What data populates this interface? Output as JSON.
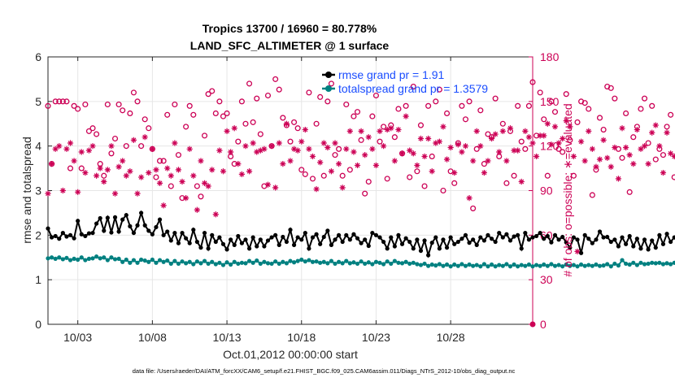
{
  "chart_data": {
    "type": "line",
    "title": "Tropics 13700 / 16960 = 80.778%",
    "subtitle": "LAND_SFC_ALTIMETER @ 1 surface",
    "xlabel": "Oct.01,2012 00:00:00 start",
    "ylabel_left": "rmse and totalspread",
    "ylabel_right": "# of obs: o=possible; ∗=evaluated",
    "footer": "data file: /Users/raeder/DAI/ATM_forcXX/CAM6_setup/f.e21.FHIST_BGC.f09_025.CAM6assim.011/Diags_NTrS_2012-10/obs_diag_output.nc",
    "xlim": [
      1,
      33.5
    ],
    "ylim_left": [
      0,
      6
    ],
    "ylim_right": [
      0,
      180
    ],
    "x_ticks": [
      3,
      8,
      13,
      18,
      23,
      28
    ],
    "x_tick_labels": [
      "10/03",
      "10/08",
      "10/13",
      "10/18",
      "10/23",
      "10/28"
    ],
    "y_left_ticks": [
      "0",
      "1",
      "2",
      "3",
      "4",
      "5",
      "6"
    ],
    "y_right_ticks": [
      "0",
      "30",
      "60",
      "90",
      "120",
      "150",
      "180"
    ],
    "grid": true,
    "legend_position": "top-right",
    "colors": {
      "rmse": "#000000",
      "spread": "#008080",
      "obs": "#cc0055",
      "legend_text": "#1a4dff"
    },
    "t_start": 1.0,
    "t_step": 0.25,
    "series": [
      {
        "name": "rmse grand pr = 1.91",
        "axis": "left",
        "values": [
          2.15,
          1.95,
          1.98,
          1.92,
          2.05,
          1.97,
          2.0,
          1.93,
          2.32,
          2.02,
          1.98,
          2.04,
          2.05,
          2.26,
          2.38,
          2.1,
          2.39,
          2.06,
          2.4,
          2.08,
          2.35,
          2.45,
          2.2,
          2.05,
          2.22,
          2.5,
          2.22,
          2.1,
          2.02,
          2.18,
          2.35,
          2.0,
          2.08,
          1.88,
          2.05,
          1.82,
          2.05,
          1.93,
          1.82,
          2.12,
          1.85,
          1.72,
          2.05,
          1.7,
          2.0,
          1.85,
          1.95,
          1.8,
          1.68,
          1.9,
          1.78,
          1.98,
          1.82,
          1.9,
          1.7,
          1.95,
          1.75,
          1.9,
          1.75,
          1.88,
          1.95,
          2.0,
          1.78,
          1.96,
          1.85,
          2.12,
          1.78,
          1.95,
          1.9,
          2.05,
          1.7,
          1.95,
          2.02,
          1.8,
          1.96,
          2.1,
          1.78,
          1.9,
          2.0,
          1.85,
          2.0,
          1.9,
          2.02,
          1.93,
          1.82,
          1.9,
          1.76,
          2.05,
          2.0,
          1.95,
          1.85,
          1.7,
          1.95,
          1.75,
          2.0,
          1.8,
          1.93,
          1.85,
          1.7,
          1.9,
          1.65,
          1.88,
          1.55,
          1.83,
          1.95,
          1.7,
          1.9,
          1.72,
          1.95,
          1.8,
          1.85,
          1.92,
          2.0,
          1.83,
          1.9,
          1.78,
          1.95,
          1.88,
          2.0,
          1.92,
          1.85,
          2.05,
          1.95,
          2.02,
          1.88,
          1.97,
          2.0,
          1.7,
          2.05,
          1.9,
          1.95,
          1.98,
          2.05,
          1.92,
          1.98,
          1.84,
          2.0,
          1.9,
          1.96,
          1.84,
          1.72,
          1.95,
          1.9,
          1.6,
          2.0,
          1.92,
          1.82,
          1.9,
          2.08,
          1.95,
          1.96,
          1.85,
          1.9,
          1.75,
          1.95,
          1.8,
          1.98,
          1.75,
          1.92,
          1.7,
          1.9,
          1.68,
          1.88,
          1.72,
          2.0,
          1.8,
          2.03,
          1.85,
          1.95,
          1.8,
          1.92,
          1.82,
          2.05,
          1.95,
          2.0,
          1.88,
          2.12,
          2.22,
          2.05,
          1.9,
          1.98,
          1.95,
          2.02,
          1.6,
          1.9,
          1.78,
          1.98,
          1.82,
          1.93,
          1.86,
          1.95,
          2.05,
          1.9,
          1.98,
          1.88,
          2.0,
          1.85,
          2.03,
          1.82,
          1.97,
          1.86,
          1.98,
          1.88,
          2.05,
          1.95,
          2.06,
          1.86,
          1.9
        ]
      },
      {
        "name": "totalspread grand pr = 1.3579",
        "axis": "left",
        "values": [
          1.48,
          1.5,
          1.47,
          1.5,
          1.46,
          1.49,
          1.44,
          1.47,
          1.45,
          1.5,
          1.44,
          1.47,
          1.48,
          1.52,
          1.48,
          1.5,
          1.44,
          1.5,
          1.46,
          1.47,
          1.4,
          1.45,
          1.38,
          1.44,
          1.38,
          1.45,
          1.43,
          1.4,
          1.45,
          1.38,
          1.44,
          1.4,
          1.43,
          1.36,
          1.42,
          1.36,
          1.41,
          1.37,
          1.4,
          1.35,
          1.41,
          1.37,
          1.42,
          1.36,
          1.4,
          1.35,
          1.38,
          1.33,
          1.39,
          1.34,
          1.4,
          1.36,
          1.38,
          1.37,
          1.42,
          1.38,
          1.43,
          1.36,
          1.4,
          1.37,
          1.36,
          1.41,
          1.36,
          1.4,
          1.37,
          1.42,
          1.39,
          1.42,
          1.45,
          1.41,
          1.44,
          1.4,
          1.41,
          1.38,
          1.4,
          1.37,
          1.42,
          1.36,
          1.4,
          1.37,
          1.42,
          1.37,
          1.39,
          1.36,
          1.41,
          1.36,
          1.39,
          1.35,
          1.4,
          1.38,
          1.35,
          1.41,
          1.36,
          1.42,
          1.38,
          1.37,
          1.4,
          1.36,
          1.38,
          1.35,
          1.33,
          1.36,
          1.31,
          1.34,
          1.32,
          1.35,
          1.31,
          1.34,
          1.3,
          1.34,
          1.31,
          1.35,
          1.31,
          1.34,
          1.31,
          1.33,
          1.3,
          1.35,
          1.3,
          1.34,
          1.3,
          1.33,
          1.31,
          1.35,
          1.3,
          1.34,
          1.3,
          1.33,
          1.31,
          1.34,
          1.3,
          1.33,
          1.31,
          1.34,
          1.31,
          1.35,
          1.31,
          1.33,
          1.3,
          1.34,
          1.31,
          1.33,
          1.3,
          1.34,
          1.31,
          1.33,
          1.31,
          1.34,
          1.31,
          1.32,
          1.35,
          1.3,
          1.36,
          1.32,
          1.44,
          1.36,
          1.34,
          1.38,
          1.33,
          1.38,
          1.35,
          1.36,
          1.38,
          1.37,
          1.38,
          1.35,
          1.37,
          1.35,
          1.38,
          1.34,
          1.37,
          1.35,
          1.38,
          1.36,
          1.37,
          1.35,
          1.4,
          1.36,
          1.38,
          1.36,
          1.39,
          1.37,
          1.4,
          1.36,
          1.38,
          1.37,
          1.36,
          1.38,
          1.36,
          1.38,
          1.37,
          1.38,
          1.37,
          1.39,
          1.36,
          1.38,
          1.36,
          1.42,
          1.39,
          1.44,
          1.41,
          1.43,
          1.4,
          1.44,
          1.41,
          1.43,
          1.41,
          1.44,
          1.42,
          1.41
        ]
      },
      {
        "name": "obs possible",
        "axis": "right",
        "marker": "o",
        "values": [
          147,
          108,
          150,
          150,
          150,
          150,
          105,
          147,
          145,
          105,
          148,
          130,
          132,
          128,
          108,
          100,
          148,
          115,
          125,
          148,
          144,
          120,
          142,
          156,
          150,
          120,
          138,
          132,
          118,
          99,
          110,
          110,
          141,
          93,
          148,
          114,
          85,
          133,
          147,
          141,
          93,
          86,
          127,
          155,
          157,
          142,
          150,
          140,
          142,
          113,
          108,
          123,
          150,
          135,
          162,
          136,
          152,
          128,
          93,
          154,
          120,
          165,
          158,
          139,
          134,
          123,
          136,
          132,
          104,
          101,
          156,
          98,
          135,
          153,
          100,
          150,
          162,
          114,
          118,
          100,
          148,
          104,
          140,
          143,
          124,
          88,
          96,
          140,
          154,
          123,
          133,
          98,
          134,
          126,
          145,
          115,
          147,
          99,
          160,
          103,
          134,
          93,
          147,
          113,
          150,
          158,
          90,
          142,
          103,
          95,
          122,
          147,
          138,
          150,
          78,
          118,
          144,
          108,
          128,
          126,
          152,
          113,
          135,
          95,
          130,
          100,
          147,
          123,
          118,
          147,
          163,
          127,
          156,
          138,
          100,
          150,
          143,
          118,
          116,
          155,
          124,
          100,
          136,
          150,
          149,
          145,
          87,
          104,
          139,
          131,
          160,
          159,
          152,
          118,
          112,
          142,
          89,
          126,
          133,
          145,
          152,
          122,
          147,
          111,
          118,
          114,
          133,
          141,
          99,
          123,
          95,
          149,
          122,
          145,
          120,
          143,
          114,
          162,
          122,
          134,
          106,
          116,
          129,
          124,
          134,
          166,
          98,
          140,
          137,
          148,
          108,
          165,
          124,
          128,
          135,
          122,
          152,
          133,
          100,
          148,
          157,
          121,
          157,
          133,
          147,
          135,
          172,
          158,
          124,
          135
        ]
      },
      {
        "name": "obs evaluated",
        "axis": "right",
        "marker": "*",
        "values": [
          88,
          108,
          118,
          120,
          90,
          118,
          122,
          110,
          89,
          116,
          102,
          117,
          120,
          100,
          105,
          96,
          104,
          120,
          88,
          106,
          110,
          100,
          103,
          124,
          88,
          99,
          126,
          102,
          118,
          104,
          95,
          80,
          105,
          100,
          122,
          104,
          96,
          85,
          118,
          100,
          77,
          110,
          95,
          93,
          104,
          74,
          117,
          103,
          130,
          116,
          132,
          108,
          101,
          120,
          103,
          122,
          116,
          117,
          118,
          94,
          120,
          92,
          122,
          108,
          135,
          110,
          118,
          117,
          123,
          131,
          118,
          113,
          91,
          109,
          122,
          119,
          103,
          122,
          108,
          92,
          118,
          130,
          116,
          107,
          130,
          114,
          126,
          118,
          107,
          130,
          120,
          131,
          132,
          110,
          131,
          115,
          140,
          117,
          115,
          107,
          125,
          113,
          125,
          103,
          122,
          123,
          133,
          111,
          119,
          102,
          121,
          116,
          120,
          85,
          110,
          130,
          120,
          102,
          110,
          125,
          128,
          116,
          130,
          110,
          132,
          117,
          117,
          96,
          130,
          126,
          122,
          113,
          127,
          127,
          135,
          121,
          133,
          122,
          125,
          137,
          133,
          113,
          49,
          123,
          110,
          130,
          118,
          106,
          111,
          124,
          112,
          106,
          119,
          98,
          132,
          119,
          114,
          108,
          131,
          118,
          120,
          108,
          129,
          134,
          120,
          102,
          129,
          115,
          113,
          128,
          117,
          126,
          138,
          111,
          115,
          106,
          124,
          108,
          117,
          102,
          114,
          120,
          102,
          126,
          109,
          118,
          124,
          119,
          138,
          126,
          96,
          134,
          110,
          121,
          126,
          92,
          130,
          111,
          134,
          117,
          127,
          107,
          96,
          121,
          92,
          127,
          112,
          119,
          134,
          118,
          135
        ]
      }
    ]
  }
}
